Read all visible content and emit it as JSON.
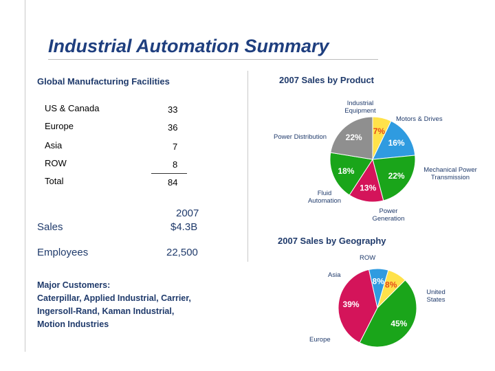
{
  "title": "Industrial Automation Summary",
  "facilities": {
    "header": "Global Manufacturing Facilities",
    "rows": [
      {
        "label": "US & Canada",
        "value": "33"
      },
      {
        "label": "Europe",
        "value": "36"
      },
      {
        "label": "Asia",
        "value": "7"
      },
      {
        "label": "ROW",
        "value": "8"
      }
    ],
    "total_label": "Total",
    "total_value": "84"
  },
  "stats": {
    "year": "2007",
    "sales_label": "Sales",
    "sales_value": "$4.3B",
    "employees_label": "Employees",
    "employees_value": "22,500"
  },
  "customers": {
    "header": "Major Customers:",
    "lines": [
      "Caterpillar, Applied Industrial, Carrier,",
      "Ingersoll-Rand, Kaman Industrial,",
      "Motion Industries"
    ]
  },
  "colors": {
    "title": "#1f3f7f",
    "navy": "#1f3a6b",
    "yellow": "#ffe24a",
    "blue": "#2f9be0",
    "green": "#1aa51a",
    "magenta": "#d4145a",
    "gray": "#8f8f8f"
  },
  "chart_data": [
    {
      "type": "pie",
      "title": "2007 Sales by Product",
      "slices": [
        {
          "name": "Industrial Equipment",
          "value": 7,
          "label": "7%",
          "color": "#ffe24a"
        },
        {
          "name": "Motors & Drives",
          "value": 16,
          "label": "16%",
          "color": "#2f9be0"
        },
        {
          "name": "Mechanical Power Transmission",
          "value": 22,
          "label": "22%",
          "color": "#1aa51a"
        },
        {
          "name": "Power Generation",
          "value": 13,
          "label": "13%",
          "color": "#d4145a"
        },
        {
          "name": "Fluid Automation",
          "value": 18,
          "label": "18%",
          "color": "#1aa51a"
        },
        {
          "name": "Power Distribution",
          "value": 22,
          "label": "22%",
          "color": "#8f8f8f"
        }
      ],
      "labels": {
        "industrial_equipment": "Industrial\nEquipment",
        "motors_drives": "Motors & Drives",
        "power_distribution": "Power Distribution",
        "mechanical_power": "Mechanical Power\nTransmission",
        "fluid_automation": "Fluid\nAutomation",
        "power_generation": "Power\nGeneration"
      }
    },
    {
      "type": "pie",
      "title": "2007 Sales by Geography",
      "slices": [
        {
          "name": "United States",
          "value": 45,
          "label": "45%",
          "color": "#1aa51a"
        },
        {
          "name": "Europe",
          "value": 39,
          "label": "39%",
          "color": "#d4145a"
        },
        {
          "name": "Asia",
          "value": 8,
          "label": "8%",
          "color": "#2f9be0"
        },
        {
          "name": "ROW",
          "value": 8,
          "label": "8%",
          "color": "#ffe24a"
        }
      ],
      "labels": {
        "row": "ROW",
        "asia": "Asia",
        "united_states": "United\nStates",
        "europe": "Europe"
      }
    }
  ]
}
